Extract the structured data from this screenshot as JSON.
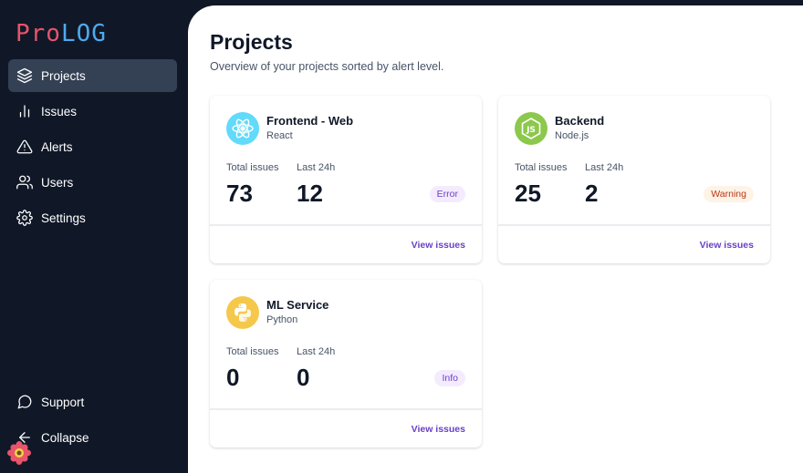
{
  "app": {
    "logo_part1": "Pro",
    "logo_part2": "LOG"
  },
  "sidebar": {
    "items": [
      {
        "label": "Projects",
        "icon": "layers-icon",
        "active": true
      },
      {
        "label": "Issues",
        "icon": "bar-chart-icon",
        "active": false
      },
      {
        "label": "Alerts",
        "icon": "alert-triangle-icon",
        "active": false
      },
      {
        "label": "Users",
        "icon": "users-icon",
        "active": false
      },
      {
        "label": "Settings",
        "icon": "gear-icon",
        "active": false
      }
    ],
    "bottom_items": [
      {
        "label": "Support",
        "icon": "message-circle-icon"
      },
      {
        "label": "Collapse",
        "icon": "arrow-left-icon"
      }
    ]
  },
  "page": {
    "title": "Projects",
    "subtitle": "Overview of your projects sorted by alert level."
  },
  "labels": {
    "total_issues": "Total issues",
    "last_24h": "Last 24h",
    "view_issues": "View issues"
  },
  "projects": [
    {
      "name": "Frontend - Web",
      "tech": "React",
      "total": "73",
      "last24": "12",
      "level": "Error",
      "icon": "react-icon"
    },
    {
      "name": "Backend",
      "tech": "Node.js",
      "total": "25",
      "last24": "2",
      "level": "Warning",
      "icon": "nodejs-icon"
    },
    {
      "name": "ML Service",
      "tech": "Python",
      "total": "0",
      "last24": "0",
      "level": "Info",
      "icon": "python-icon"
    }
  ],
  "colors": {
    "sidebar_bg": "#101828",
    "active_item_bg": "#344054",
    "accent": "#6941c6",
    "error_bg": "#f4ebff",
    "warning_bg": "#fef3e7",
    "warning_text": "#b93815",
    "info_bg": "#f4ebff"
  }
}
